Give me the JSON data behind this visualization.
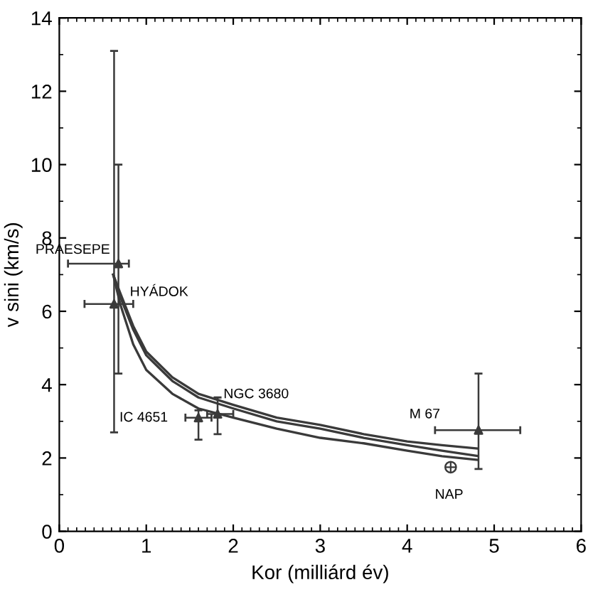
{
  "chart_data": {
    "type": "line",
    "xlabel": "Kor (milliárd év)",
    "ylabel": "v sini (km/s)",
    "xlim": [
      0,
      6
    ],
    "ylim": [
      0,
      14
    ],
    "xticks": [
      0,
      1,
      2,
      3,
      4,
      5,
      6
    ],
    "yticks": [
      0,
      2,
      4,
      6,
      8,
      10,
      12,
      14
    ],
    "grid": false,
    "line_style": "solid",
    "series": [
      {
        "color": "#3a3a3a",
        "x": [
          0.62,
          0.7,
          0.85,
          1.0,
          1.3,
          1.6,
          2.0,
          2.5,
          3.0,
          3.5,
          4.0,
          4.4,
          4.8
        ],
        "values": [
          7.0,
          6.5,
          5.6,
          4.9,
          4.2,
          3.75,
          3.45,
          3.1,
          2.9,
          2.65,
          2.45,
          2.35,
          2.26
        ]
      },
      {
        "color": "#3a3a3a",
        "x": [
          0.62,
          0.7,
          0.85,
          1.0,
          1.3,
          1.6,
          2.0,
          2.5,
          3.0,
          3.5,
          4.0,
          4.4,
          4.8
        ],
        "values": [
          7.0,
          6.4,
          5.5,
          4.8,
          4.1,
          3.65,
          3.35,
          3.0,
          2.8,
          2.55,
          2.35,
          2.2,
          2.06
        ]
      },
      {
        "color": "#3a3a3a",
        "x": [
          0.62,
          0.7,
          0.85,
          1.0,
          1.3,
          1.6,
          2.0,
          2.5,
          3.0,
          3.5,
          4.0,
          4.4,
          4.8
        ],
        "values": [
          7.0,
          6.2,
          5.1,
          4.4,
          3.75,
          3.35,
          3.1,
          2.8,
          2.55,
          2.4,
          2.2,
          2.05,
          1.95
        ]
      },
      {
        "type": "scatter",
        "marker": "triangle",
        "color": "#3a3a3a",
        "x": [
          0.68,
          0.63,
          1.6,
          1.82,
          4.82
        ],
        "values": [
          7.3,
          6.2,
          3.1,
          3.2,
          2.76
        ],
        "errors": [
          [
            4.3,
            10.0
          ],
          [
            2.7,
            13.1
          ],
          [
            2.5,
            3.3
          ],
          [
            2.65,
            3.65
          ],
          [
            1.7,
            4.3
          ]
        ],
        "xerrors": [
          [
            0.1,
            0.8
          ],
          [
            0.29,
            0.85
          ],
          [
            1.45,
            1.75
          ],
          [
            1.7,
            2.0
          ],
          [
            4.32,
            5.3
          ]
        ]
      },
      {
        "type": "scatter",
        "marker": "circle",
        "color": "#3a3a3a",
        "x": [
          4.5
        ],
        "values": [
          1.75
        ]
      }
    ],
    "annotations": [
      {
        "text": "PRAESEPE",
        "x": 0.68,
        "y": 7.3
      },
      {
        "text": "HYÁDOK",
        "x": 0.63,
        "y": 6.2
      },
      {
        "text": "IC 4651",
        "x": 1.6,
        "y": 3.1
      },
      {
        "text": "NGC 3680",
        "x": 1.82,
        "y": 3.2
      },
      {
        "text": "M 67",
        "x": 4.82,
        "y": 2.76
      },
      {
        "text": "NAP",
        "x": 4.5,
        "y": 1.75
      }
    ]
  }
}
